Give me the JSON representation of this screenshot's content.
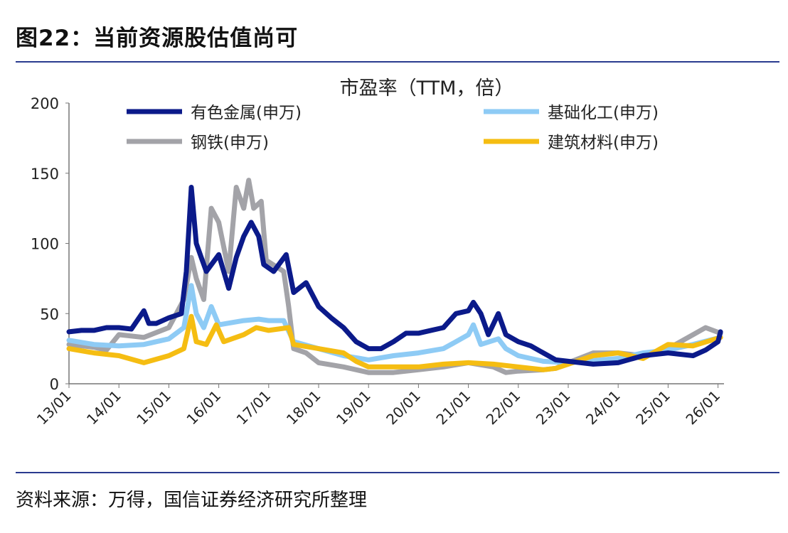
{
  "figure_title": "图22：当前资源股估值尚可",
  "source": "资料来源：万得，国信证券经济研究所整理",
  "chart_data": {
    "type": "line",
    "title": "市盈率（TTM，倍）",
    "xlabel": "",
    "ylabel": "",
    "ylim": [
      0,
      200
    ],
    "xlim": [
      2013.0,
      2026.12
    ],
    "yticks": [
      0,
      50,
      100,
      150,
      200
    ],
    "xtick_labels": [
      "13/01",
      "14/01",
      "15/01",
      "16/01",
      "17/01",
      "18/01",
      "19/01",
      "20/01",
      "21/01",
      "22/01",
      "23/01",
      "24/01",
      "25/01",
      "26/01"
    ],
    "grid": false,
    "legend_position": "top",
    "series": [
      {
        "name": "有色金属(申万)",
        "color": "#0b1a8a",
        "x": [
          2013.0,
          2013.25,
          2013.5,
          2013.75,
          2014.0,
          2014.25,
          2014.5,
          2014.6,
          2014.75,
          2015.0,
          2015.25,
          2015.35,
          2015.45,
          2015.55,
          2015.65,
          2015.75,
          2016.0,
          2016.2,
          2016.35,
          2016.5,
          2016.65,
          2016.8,
          2016.9,
          2017.1,
          2017.35,
          2017.5,
          2017.75,
          2018.0,
          2018.25,
          2018.5,
          2018.75,
          2019.0,
          2019.25,
          2019.5,
          2019.75,
          2020.0,
          2020.25,
          2020.5,
          2020.75,
          2021.0,
          2021.1,
          2021.25,
          2021.4,
          2021.6,
          2021.75,
          2022.0,
          2022.25,
          2022.5,
          2022.75,
          2023.0,
          2023.5,
          2024.0,
          2024.5,
          2025.0,
          2025.5,
          2025.75,
          2026.0,
          2026.05
        ],
        "y": [
          37,
          38,
          38,
          40,
          40,
          39,
          52,
          43,
          43,
          47,
          50,
          80,
          140,
          100,
          90,
          80,
          92,
          68,
          90,
          105,
          115,
          105,
          85,
          80,
          92,
          65,
          72,
          55,
          47,
          40,
          30,
          25,
          25,
          30,
          36,
          36,
          38,
          40,
          50,
          52,
          58,
          50,
          35,
          50,
          35,
          30,
          27,
          22,
          17,
          16,
          14,
          15,
          20,
          22,
          20,
          24,
          30,
          37
        ]
      },
      {
        "name": "基础化工(申万)",
        "color": "#8ecbf5",
        "x": [
          2013.0,
          2013.5,
          2014.0,
          2014.5,
          2015.0,
          2015.3,
          2015.45,
          2015.55,
          2015.7,
          2015.85,
          2016.0,
          2016.5,
          2016.8,
          2017.0,
          2017.3,
          2017.5,
          2018.0,
          2018.5,
          2019.0,
          2019.5,
          2020.0,
          2020.5,
          2020.75,
          2021.0,
          2021.1,
          2021.25,
          2021.6,
          2021.75,
          2022.0,
          2022.5,
          2023.0,
          2024.0,
          2024.5,
          2025.0,
          2025.5,
          2026.05
        ],
        "y": [
          31,
          28,
          27,
          28,
          32,
          40,
          70,
          50,
          40,
          55,
          42,
          45,
          46,
          45,
          45,
          30,
          25,
          20,
          17,
          20,
          22,
          25,
          30,
          35,
          42,
          28,
          32,
          25,
          20,
          16,
          15,
          18,
          22,
          24,
          28,
          33
        ]
      },
      {
        "name": "钢铁(申万)",
        "color": "#a3a3a8",
        "x": [
          2013.0,
          2013.5,
          2013.75,
          2014.0,
          2014.5,
          2015.0,
          2015.3,
          2015.45,
          2015.55,
          2015.7,
          2015.85,
          2016.0,
          2016.2,
          2016.35,
          2016.5,
          2016.6,
          2016.7,
          2016.85,
          2016.95,
          2017.3,
          2017.4,
          2017.5,
          2017.75,
          2018.0,
          2018.5,
          2019.0,
          2019.5,
          2020.0,
          2020.5,
          2021.0,
          2021.5,
          2021.75,
          2022.0,
          2022.5,
          2022.75,
          2023.0,
          2023.5,
          2024.0,
          2024.5,
          2025.0,
          2025.5,
          2025.75,
          2026.05
        ],
        "y": [
          28,
          26,
          24,
          35,
          33,
          40,
          60,
          90,
          75,
          60,
          125,
          115,
          80,
          140,
          125,
          145,
          125,
          130,
          88,
          80,
          55,
          25,
          22,
          15,
          12,
          8,
          8,
          10,
          12,
          15,
          12,
          8,
          9,
          10,
          11,
          15,
          22,
          22,
          20,
          25,
          35,
          40,
          36
        ]
      },
      {
        "name": "建筑材料(申万)",
        "color": "#f5bd12",
        "x": [
          2013.0,
          2013.5,
          2014.0,
          2014.5,
          2015.0,
          2015.3,
          2015.45,
          2015.55,
          2015.75,
          2015.95,
          2016.1,
          2016.5,
          2016.75,
          2017.0,
          2017.4,
          2017.5,
          2018.0,
          2018.5,
          2018.75,
          2019.0,
          2019.5,
          2020.0,
          2020.5,
          2021.0,
          2021.5,
          2022.0,
          2022.5,
          2022.75,
          2023.0,
          2023.5,
          2024.0,
          2024.5,
          2025.0,
          2025.5,
          2026.05
        ],
        "y": [
          25,
          22,
          20,
          15,
          20,
          25,
          48,
          30,
          28,
          42,
          30,
          35,
          40,
          38,
          40,
          28,
          25,
          22,
          16,
          12,
          12,
          12,
          14,
          15,
          14,
          12,
          10,
          11,
          14,
          20,
          22,
          18,
          28,
          27,
          33
        ]
      }
    ]
  }
}
